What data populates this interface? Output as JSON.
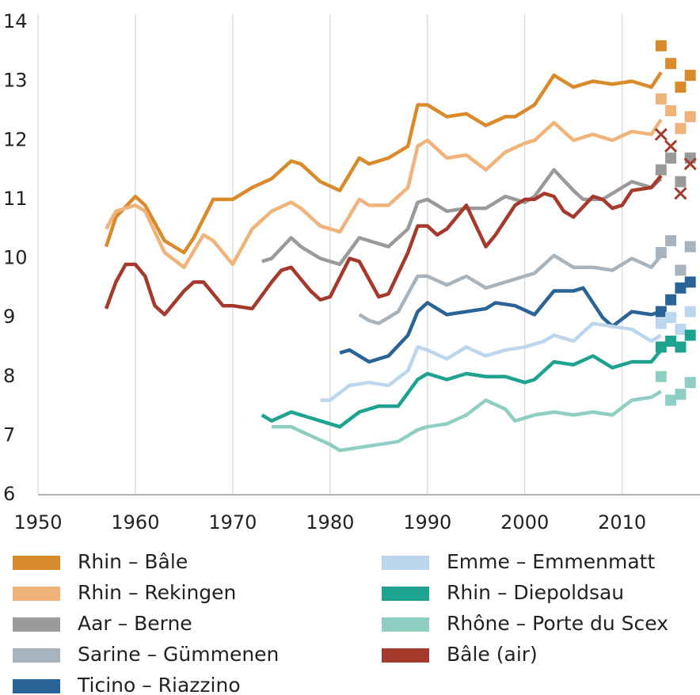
{
  "chart_data": {
    "type": "line",
    "xlim": [
      1950,
      2018
    ],
    "xticks": [
      1950,
      1960,
      1970,
      1980,
      1990,
      2000,
      2010
    ],
    "ylim": [
      6,
      14
    ],
    "yticks": [
      6,
      7,
      8,
      9,
      10,
      11,
      12,
      13,
      14
    ],
    "grid": true,
    "series": [
      {
        "name": "Rhin – Bâle",
        "color": "#d98a2b",
        "x": [
          1957,
          1958,
          1960,
          1961,
          1963,
          1965,
          1966,
          1968,
          1970,
          1972,
          1974,
          1976,
          1977,
          1979,
          1981,
          1983,
          1984,
          1986,
          1988,
          1989,
          1990,
          1992,
          1994,
          1996,
          1998,
          1999,
          2001,
          2003,
          2005,
          2007,
          2009,
          2011,
          2013,
          2014
        ],
        "values": [
          10.2,
          10.7,
          11.05,
          10.9,
          10.3,
          10.1,
          10.35,
          11.0,
          11.0,
          11.2,
          11.35,
          11.65,
          11.6,
          11.3,
          11.15,
          11.7,
          11.6,
          11.7,
          11.9,
          12.6,
          12.6,
          12.4,
          12.45,
          12.25,
          12.4,
          12.4,
          12.6,
          13.1,
          12.9,
          13.0,
          12.95,
          13.0,
          12.9,
          13.15
        ],
        "markers": {
          "shape": "square",
          "x": [
            2014,
            2015,
            2016,
            2017
          ],
          "values": [
            13.6,
            13.3,
            12.9,
            13.1
          ]
        }
      },
      {
        "name": "Rhin – Rekingen",
        "color": "#f0b37a",
        "x": [
          1957,
          1958,
          1960,
          1961,
          1963,
          1965,
          1967,
          1968,
          1970,
          1972,
          1974,
          1976,
          1977,
          1979,
          1981,
          1983,
          1984,
          1986,
          1988,
          1989,
          1990,
          1992,
          1994,
          1996,
          1998,
          2000,
          2001,
          2003,
          2005,
          2007,
          2009,
          2011,
          2013,
          2014
        ],
        "values": [
          10.5,
          10.8,
          10.9,
          10.8,
          10.1,
          9.85,
          10.4,
          10.3,
          9.9,
          10.5,
          10.8,
          10.95,
          10.85,
          10.55,
          10.45,
          11.0,
          10.9,
          10.9,
          11.2,
          11.9,
          12.0,
          11.7,
          11.75,
          11.5,
          11.8,
          11.95,
          12.0,
          12.3,
          12.0,
          12.1,
          12.0,
          12.15,
          12.1,
          12.35
        ],
        "markers": {
          "shape": "square",
          "x": [
            2014,
            2015,
            2016,
            2017
          ],
          "values": [
            12.7,
            12.5,
            12.2,
            12.4
          ]
        }
      },
      {
        "name": "Aar – Berne",
        "color": "#9a9a9a",
        "x": [
          1973,
          1974,
          1976,
          1977,
          1979,
          1981,
          1983,
          1984,
          1986,
          1988,
          1989,
          1990,
          1992,
          1994,
          1996,
          1998,
          2000,
          2001,
          2003,
          2005,
          2006,
          2008,
          2011,
          2013,
          2014
        ],
        "values": [
          9.95,
          10.0,
          10.35,
          10.2,
          10.0,
          9.9,
          10.35,
          10.3,
          10.2,
          10.5,
          10.95,
          11.0,
          10.8,
          10.85,
          10.85,
          11.05,
          10.95,
          11.05,
          11.5,
          11.15,
          11.0,
          11.0,
          11.3,
          11.2,
          11.35
        ],
        "markers": {
          "shape": "square",
          "x": [
            2014,
            2015,
            2016,
            2017
          ],
          "values": [
            11.5,
            11.7,
            11.3,
            11.7
          ]
        }
      },
      {
        "name": "Sarine – Gümmenen",
        "color": "#a8b4bd",
        "x": [
          1983,
          1984,
          1985,
          1987,
          1989,
          1990,
          1992,
          1994,
          1996,
          1998,
          2000,
          2001,
          2003,
          2005,
          2007,
          2009,
          2011,
          2013,
          2014
        ],
        "values": [
          9.05,
          8.95,
          8.9,
          9.1,
          9.7,
          9.7,
          9.55,
          9.7,
          9.5,
          9.6,
          9.7,
          9.75,
          10.05,
          9.85,
          9.85,
          9.8,
          10.0,
          9.85,
          10.05
        ],
        "markers": {
          "shape": "square",
          "x": [
            2014,
            2015,
            2016,
            2017
          ],
          "values": [
            10.1,
            10.3,
            9.8,
            10.2
          ]
        }
      },
      {
        "name": "Ticino – Riazzino",
        "color": "#2a6496",
        "x": [
          1981,
          1982,
          1984,
          1986,
          1988,
          1989,
          1990,
          1992,
          1994,
          1996,
          1997,
          1999,
          2001,
          2003,
          2005,
          2006,
          2008,
          2009,
          2011,
          2013,
          2014
        ],
        "values": [
          8.4,
          8.45,
          8.25,
          8.35,
          8.7,
          9.1,
          9.25,
          9.05,
          9.1,
          9.15,
          9.25,
          9.2,
          9.05,
          9.45,
          9.45,
          9.5,
          9.0,
          8.85,
          9.1,
          9.05,
          9.1
        ],
        "markers": {
          "shape": "square",
          "x": [
            2014,
            2015,
            2016,
            2017
          ],
          "values": [
            9.1,
            9.3,
            9.5,
            9.6
          ]
        }
      },
      {
        "name": "Emme – Emmenmatt",
        "color": "#bcd6ee",
        "x": [
          1979,
          1980,
          1982,
          1984,
          1986,
          1988,
          1989,
          1990,
          1992,
          1994,
          1996,
          1998,
          2000,
          2002,
          2003,
          2005,
          2007,
          2009,
          2011,
          2013,
          2014
        ],
        "values": [
          7.6,
          7.6,
          7.85,
          7.9,
          7.85,
          8.1,
          8.5,
          8.45,
          8.3,
          8.5,
          8.35,
          8.45,
          8.5,
          8.6,
          8.7,
          8.6,
          8.9,
          8.85,
          8.8,
          8.6,
          8.7
        ],
        "markers": {
          "shape": "square",
          "x": [
            2014,
            2015,
            2016,
            2017
          ],
          "values": [
            8.9,
            9.0,
            8.8,
            9.1
          ]
        }
      },
      {
        "name": "Rhin – Diepoldsau",
        "color": "#1fa391",
        "x": [
          1973,
          1974,
          1976,
          1978,
          1980,
          1981,
          1983,
          1985,
          1987,
          1989,
          1990,
          1992,
          1994,
          1996,
          1998,
          2000,
          2001,
          2003,
          2005,
          2007,
          2009,
          2011,
          2013,
          2014
        ],
        "values": [
          7.35,
          7.25,
          7.4,
          7.3,
          7.2,
          7.15,
          7.4,
          7.5,
          7.5,
          7.95,
          8.05,
          7.95,
          8.05,
          8.0,
          8.0,
          7.9,
          7.95,
          8.25,
          8.2,
          8.35,
          8.15,
          8.25,
          8.25,
          8.45
        ],
        "markers": {
          "shape": "square",
          "x": [
            2014,
            2015,
            2016,
            2017
          ],
          "values": [
            8.5,
            8.6,
            8.5,
            8.7
          ]
        }
      },
      {
        "name": "Rhône – Porte du Scex",
        "color": "#8fcfc3",
        "x": [
          1974,
          1976,
          1978,
          1980,
          1981,
          1983,
          1985,
          1987,
          1989,
          1990,
          1992,
          1994,
          1996,
          1998,
          1999,
          2001,
          2003,
          2005,
          2007,
          2009,
          2011,
          2013,
          2014
        ],
        "values": [
          7.15,
          7.15,
          7.0,
          6.85,
          6.75,
          6.8,
          6.85,
          6.9,
          7.1,
          7.15,
          7.2,
          7.35,
          7.6,
          7.45,
          7.25,
          7.35,
          7.4,
          7.35,
          7.4,
          7.35,
          7.6,
          7.65,
          7.75
        ],
        "markers": {
          "shape": "square",
          "x": [
            2014,
            2015,
            2016,
            2017
          ],
          "values": [
            8.0,
            7.6,
            7.7,
            7.9
          ]
        }
      },
      {
        "name": "Bâle (air)",
        "color": "#a53a2c",
        "x": [
          1957,
          1958,
          1959,
          1960,
          1961,
          1962,
          1963,
          1965,
          1966,
          1967,
          1969,
          1970,
          1972,
          1974,
          1975,
          1976,
          1978,
          1979,
          1980,
          1982,
          1983,
          1985,
          1986,
          1988,
          1989,
          1990,
          1991,
          1992,
          1994,
          1996,
          1997,
          1999,
          2000,
          2001,
          2002,
          2003,
          2004,
          2005,
          2007,
          2008,
          2009,
          2010,
          2011,
          2013,
          2014
        ],
        "values": [
          9.15,
          9.6,
          9.9,
          9.9,
          9.7,
          9.2,
          9.05,
          9.45,
          9.6,
          9.6,
          9.2,
          9.2,
          9.15,
          9.6,
          9.8,
          9.85,
          9.45,
          9.3,
          9.35,
          10.0,
          9.95,
          9.35,
          9.4,
          10.1,
          10.55,
          10.55,
          10.4,
          10.5,
          10.9,
          10.2,
          10.4,
          10.9,
          11.0,
          11.0,
          11.1,
          11.05,
          10.8,
          10.7,
          11.05,
          11.0,
          10.85,
          10.9,
          11.15,
          11.2,
          11.4
        ],
        "markers": {
          "shape": "cross",
          "x": [
            2014,
            2015,
            2016,
            2017
          ],
          "values": [
            12.1,
            11.9,
            11.1,
            11.6
          ]
        }
      }
    ]
  }
}
